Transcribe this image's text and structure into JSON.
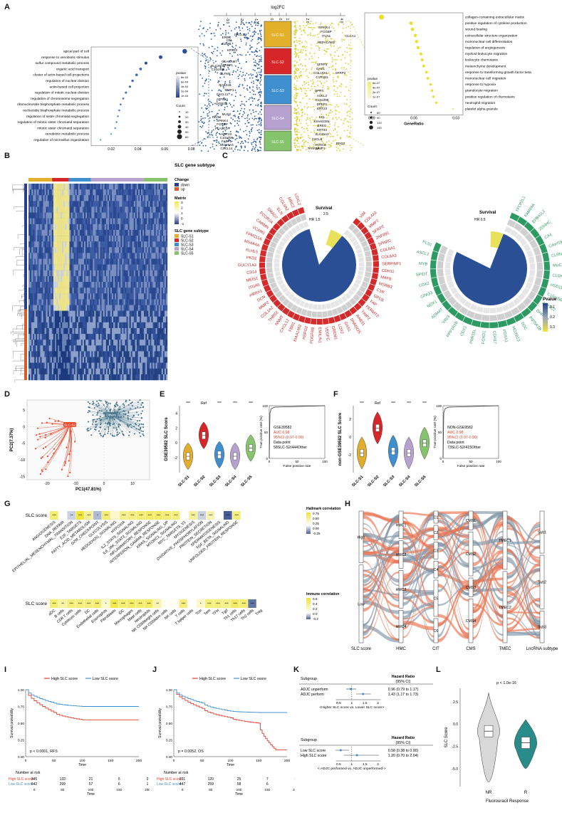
{
  "labels": {
    "A": "A",
    "B": "B",
    "C": "C",
    "D": "D",
    "E": "E",
    "F": "F",
    "G": "G",
    "H": "H",
    "I": "I",
    "J": "J",
    "K": "K",
    "L": "L"
  },
  "panelA": {
    "top_axis_title": "log2FC",
    "top_ticks": [
      "-3.0",
      "-2.0",
      "-1.0",
      "0.0",
      "0.5",
      "1.0",
      "2.0",
      "4.0"
    ],
    "subtypes": [
      "SLC-S1",
      "SLC-S2",
      "SLC-S3",
      "SLC-S4",
      "SLC-S5"
    ],
    "subtype_colors": [
      "#e3b02b",
      "#d7262a",
      "#3f8fce",
      "#b7a2cf",
      "#86c36d"
    ],
    "left_genes": [
      "EREG",
      "CXCL5",
      "CEL",
      "GZMB",
      "KRT23",
      "CEACAM7",
      "SLC26A3",
      "FABP1",
      "C10orf99",
      "OLFM4",
      "RAB31B",
      "MMP1",
      "CXCL11",
      "ATP8A1",
      "ADGRG6",
      "REG4",
      "MUC2",
      "SPINK4",
      "FCGBP",
      "PLA2G2A",
      "KRT23",
      "C10orf99",
      "FABP1",
      "SLC26A3",
      "CXCL14"
    ],
    "right_genes": [
      "SPINK4",
      "FCGBP",
      "ITLN1",
      "CLCA1",
      "HEPACAM2",
      "SFRP4",
      "GAS1",
      "COL10A1",
      "SFRP2",
      "CYP1B1",
      "QPRT",
      "ASCL2",
      "C10orf99",
      "DPEP1",
      "KRT23",
      "CEL",
      "KIAA0226L",
      "EREG",
      "KRT23",
      "SLC26A3",
      "CXCL5",
      "REG4",
      "HOXC6",
      "MMP1",
      "TFAP2A"
    ],
    "left_terms": [
      "apical part of cell",
      "response to xenobiotic stimulus",
      "sulfur compound metabolic process",
      "organic acid transport",
      "cluster of actin-based cell projections",
      "regulation of nuclear division",
      "actin-based cell projection",
      "regulation of mitotic nuclear division",
      "regulation of chromosome segregation",
      "ribonucleoside bisphosphate metabolic process",
      "nucleoside bisphosphate metabolic process",
      "regulation of sister chromatid segregation",
      "regulation of mitotic sister chromatid separation",
      "mitotic sister chromatid separation",
      "xenobiotic metabolic process",
      "regulation of microvillus organization"
    ],
    "left_ratio": [
      0.075,
      0.057,
      0.046,
      0.042,
      0.039,
      0.036,
      0.034,
      0.031,
      0.029,
      0.027,
      0.026,
      0.025,
      0.024,
      0.023,
      0.02,
      0.012
    ],
    "left_axis_ticks": [
      "0.02",
      "0.04",
      "0.06",
      "0.08"
    ],
    "left_xlabel": "GeneRatio",
    "left_legend_pvalue_title": "pvalue",
    "left_legend_pvalue_ticks": [
      "8e-04",
      "6e-04",
      "4e-04",
      "2e-04",
      "1e-04"
    ],
    "left_legend_count_title": "Count",
    "left_legend_count_ticks": [
      "10",
      "20",
      "30",
      "40",
      "50",
      "60"
    ],
    "right_terms": [
      "collagen-containing extracellular matrix",
      "positive regulation of cytokine production",
      "wound healing",
      "extracellular structure organization",
      "mononuclear cell differentiation",
      "regulation of angiogenesis",
      "myeloid leukocyte migration",
      "leukocyte chemotaxis",
      "mesenchyme development",
      "response to transforming growth factor beta",
      "mononuclear cell migration",
      "response to hypoxia",
      "granulocyte migration",
      "positive regulation of chemotaxis",
      "neutrophil migration",
      "platelet alpha granule"
    ],
    "right_ratio": [
      0.083,
      0.062,
      0.061,
      0.059,
      0.058,
      0.057,
      0.055,
      0.054,
      0.053,
      0.051,
      0.05,
      0.048,
      0.047,
      0.046,
      0.044,
      0.032
    ],
    "right_axis_ticks": [
      "0.09",
      "0.06",
      "0.03"
    ],
    "right_xlabel": "GeneRatio",
    "right_legend_pvalue_title": "pvalue",
    "right_legend_pvalue_ticks": [
      "6e-07",
      "4e-07",
      "2e-07",
      "1e-07"
    ],
    "right_legend_count_title": "Count",
    "right_legend_count_ticks": [
      "60",
      "90",
      "120",
      "150"
    ]
  },
  "panelB": {
    "header": "SLC gene subtype",
    "legend_change_title": "Change",
    "legend_change_items": [
      "down",
      "up"
    ],
    "legend_matrix_title": "Matrix",
    "legend_matrix_ticks": [
      "3",
      "2",
      "1",
      "0",
      "-1"
    ],
    "legend_subtype_title": "SLC gene subtype",
    "legend_subtype_items": [
      "SLC-S1",
      "SLC-S2",
      "SLC-S3",
      "SLC-S4",
      "SLC-S5"
    ]
  },
  "panelC": {
    "left_genes": [
      "VIM",
      "COL4A1",
      "MMP7",
      "SFRP2",
      "ZNF891",
      "SPARC",
      "COL8A1",
      "COL6A3",
      "SERPINF1",
      "CDH11",
      "MAFB",
      "MSRB3",
      "C1R",
      "GPC6",
      "FAP",
      "FERMT2",
      "TIMP2",
      "RAB31",
      "DNM3OS",
      "GAS1",
      "LOX2",
      "GREM1",
      "VEGFC",
      "EMILIN1",
      "PDGFRB",
      "HSPG2",
      "KIAA1462",
      "FBN1",
      "CXCL12",
      "NNMT",
      "THBS2",
      "COL1A2",
      "MMP2",
      "DCN",
      "PRRX1",
      "ITGA5",
      "MEIS1",
      "CD14",
      "GUCY1A3",
      "PKD2",
      "KLHL5",
      "MS4A4A",
      "FAM111A",
      "VCAM1",
      "CARMN",
      "FCGR2A",
      "SMAD7",
      "ELN",
      "COL5A2",
      "MRC2",
      "LOXL2"
    ],
    "right_genes": [
      "TFCP2L1",
      "FAM84A",
      "EPB41L2",
      "ZDHHC",
      "CA4",
      "C4orf19",
      "CLRN3",
      "MUC13",
      "CLDN3",
      "HSD11B2",
      "C10orf99",
      "ATP2C2",
      "DHRS11",
      "PIPI5K1B",
      "DDC",
      "HOXB13",
      "FOXA1",
      "CDH17",
      "FOXD1",
      "PRR15L",
      "CDX1",
      "PPP1R1B",
      "VAV3",
      "AGMAT",
      "NOX1",
      "GPA33",
      "CDX2",
      "SPIDT",
      "MYB",
      "ASCL2",
      "PLS1"
    ],
    "survival_label": "Survival",
    "hr_label_left": "HR 1.5",
    "hr_label_left_top": "2.5",
    "hr_label_left_mid": "1.5",
    "hr_label_right": "HR 0.5",
    "legend_title": "Pvalue",
    "legend_ticks": [
      "0.1",
      "0.2",
      "0.3"
    ]
  },
  "panelD": {
    "xlabel": "PC1(47.81%)",
    "ylabel": "PC2(7.37%)",
    "group_slc": "SLC-S2",
    "group_others": "Others",
    "x_ticks": [
      "-20",
      "-10",
      "0",
      "10"
    ],
    "y_ticks": [
      "5",
      "0",
      "-5",
      "-10",
      "-15"
    ]
  },
  "panelE": {
    "ylabel": "GSE39582 SLC Score",
    "sig": [
      "***",
      "Ref",
      "***",
      "***",
      "***"
    ],
    "groups": [
      "SLC-S1",
      "SLC-S2",
      "SLC-S3",
      "SLC-S4",
      "SLC-S5"
    ],
    "y_ticks": [
      "4",
      "2",
      "0",
      "-2"
    ],
    "roc_ylabel": "True positive rate (%)",
    "roc_xlabel": "False positive rate",
    "roc_dataset": "GSE39582",
    "roc_auc": "AUC 0.98",
    "roc_ci": "95%CI (0.97-0.99)",
    "roc_point": "Data point",
    "roc_points": "58SLC-S2/444Other",
    "roc_ticks": [
      "100",
      "50",
      "0"
    ],
    "roc_xticks": [
      "0",
      "50",
      "100"
    ]
  },
  "panelF": {
    "ylabel": "non-GSE39582 SLC Score",
    "sig": [
      "***",
      "Ref",
      "***",
      "***",
      "***"
    ],
    "groups": [
      "SLC-S1",
      "SLC-S2",
      "SLC-S3",
      "SLC-S4",
      "SLC-S5"
    ],
    "y_ticks": [
      "2",
      "0",
      "-2"
    ],
    "roc_ylabel": "True positive rate (%)",
    "roc_xlabel": "False positive rate",
    "roc_dataset": "NON-GSE9582",
    "roc_auc": "AUC 0.98",
    "roc_ci": "95%CI (0.97-0.99)",
    "roc_point": "Data point",
    "roc_points": "73SLC-S2/415Other",
    "roc_ticks": [
      "100",
      "50",
      "0"
    ],
    "roc_xticks": [
      "0",
      "50",
      "100"
    ]
  },
  "panelG": {
    "row_label": "SLC score",
    "hallmark": [
      "ANGIOGENESIS",
      "DNA_REPAIR",
      "EPITHELIAL_MESENCHYMAL_TRANSITION",
      "E2F_TARGETS",
      "FATTY_ACID_METABOLISM",
      "G2M_CHECKPOINT",
      "GLYCOLYSIS",
      "HEDGEHOG_SIGNALING",
      "HYPOXIA",
      "IL2_STAT5_SIGNALING",
      "IL6_JAK_STAT3_SIGNALING",
      "INFLAMMATORY_RESPONSE",
      "INTERFERON_GAMMA_RESPONSE",
      "KRAS_SIGNALING_UP",
      "MTORC1_SIGNALING",
      "MYC_TARGETS_V1",
      "MYOGENESIS",
      "OXIDATIVE_PHOSPHORYLATION",
      "PROTEIN_SECRETION",
      "SPERMATOGENESIS",
      "TGF_BETA_SIGNALING",
      "UNFOLDED_PROTEIN_RESPONSE"
    ],
    "hallmark_sig": [
      "***",
      "",
      "**",
      "***",
      "***",
      "*",
      "***",
      "",
      "***",
      "***",
      "***",
      "***",
      "***",
      "***",
      "***",
      "",
      "***",
      "***",
      "***",
      "",
      "***",
      "***"
    ],
    "hallmark_val": [
      0.55,
      0.0,
      -0.1,
      0.75,
      0.4,
      -0.15,
      0.55,
      0.2,
      0.45,
      0.5,
      0.55,
      0.6,
      0.6,
      0.55,
      0.5,
      0.0,
      0.4,
      -0.1,
      0.3,
      0.0,
      -0.35,
      0.5
    ],
    "hallmark_legend_title": "Hallmark correlation",
    "hallmark_legend_ticks": [
      "0.75",
      "0.50",
      "0.25",
      "0.00",
      "-0.25"
    ],
    "immune": [
      "aDC",
      "B cells",
      "CD8 T cells",
      "Cytotoxic cells",
      "DC",
      "Endothelial cells",
      "Eosinophils",
      "Fibroblasts",
      "iDC",
      "Macrophages",
      "Mast cells",
      "Neutrophils",
      "NK CD56bright cells",
      "NK CD56dim cells",
      "NK cells",
      "T cells",
      "T helper cells",
      "Tcm",
      "Tem",
      "TFH",
      "Tgd",
      "Th1 cells",
      "Th17 cells",
      "Th2 cells",
      "Treg"
    ],
    "immune_sig": [
      "***",
      "**",
      "***",
      "***",
      "***",
      "***",
      "*",
      "***",
      "***",
      "***",
      "***",
      "***",
      "**",
      "",
      "",
      "***",
      "",
      "*",
      "***",
      "***",
      "***",
      "***",
      "***",
      "***",
      ""
    ],
    "immune_val": [
      0.55,
      0.35,
      0.5,
      0.5,
      0.5,
      0.55,
      0.2,
      0.7,
      0.55,
      0.6,
      0.55,
      0.6,
      0.3,
      0.05,
      0.05,
      0.5,
      0.0,
      0.2,
      0.5,
      0.5,
      0.45,
      0.6,
      0.55,
      -0.3,
      0.0
    ],
    "immune_legend_title": "Immune correlation",
    "immune_legend_ticks": [
      "0.6",
      "0.4",
      "0.2",
      "0.0",
      "-0.2"
    ]
  },
  "panelH": {
    "axes": [
      "SLC score",
      "HMC",
      "CIT",
      "CMS",
      "TMEC",
      "LncRNA subtype"
    ],
    "slc_nodes": [
      "High",
      "Low"
    ],
    "hmc_nodes": [
      "HMC1",
      "HMC2",
      "HMC3",
      "HMC4"
    ],
    "cit_nodes": [
      "C1",
      "C2",
      "C3",
      "C4",
      "C5",
      "C6"
    ],
    "cms_nodes": [
      "CMS1",
      "CMS2",
      "CMS3",
      "CMS4"
    ],
    "tmec_nodes": [
      "TMEC1",
      "TMEC2"
    ],
    "lnc_nodes": [
      "Sub1",
      "Sub2",
      "Sub3"
    ]
  },
  "panelI": {
    "legend_high": "High SLC score",
    "legend_low": "Low SLC score",
    "ylabel": "Survival probability",
    "xlabel": "Time",
    "pvalue": "p < 0.0001, RFS",
    "risk_title": "Number at risk",
    "risk_high": [
      "345",
      "133",
      "21",
      "5",
      "0"
    ],
    "risk_low": [
      "642",
      "299",
      "57",
      "6",
      "1"
    ],
    "time_ticks": [
      "0",
      "50",
      "100",
      "150",
      "200"
    ],
    "y_ticks": [
      "1.00",
      "0.75",
      "0.50",
      "0.25",
      "0.00"
    ],
    "chart_data": {
      "type": "line",
      "x": [
        0,
        50,
        100,
        150,
        200
      ],
      "series": [
        {
          "name": "High SLC score",
          "values": [
            1.0,
            0.66,
            0.55,
            0.55,
            0.55
          ]
        },
        {
          "name": "Low SLC score",
          "values": [
            1.0,
            0.8,
            0.75,
            0.75,
            0.75
          ]
        }
      ]
    }
  },
  "panelJ": {
    "legend_high": "High SLC score",
    "legend_low": "Low SLC score",
    "ylabel": "Survival probability",
    "xlabel": "Time",
    "pvalue": "p = 0.0052, OS",
    "risk_title": "Number at risk",
    "risk_high": [
      "231",
      "120",
      "25",
      "7",
      "0"
    ],
    "risk_low": [
      "447",
      "259",
      "58",
      "6",
      "1"
    ],
    "time_ticks": [
      "0",
      "50",
      "100",
      "150",
      "200"
    ],
    "y_ticks": [
      "1.00",
      "0.75",
      "0.50",
      "0.25",
      "0.00"
    ],
    "chart_data": {
      "type": "line",
      "x": [
        0,
        50,
        100,
        150,
        180,
        200
      ],
      "series": [
        {
          "name": "High SLC score",
          "values": [
            1.0,
            0.72,
            0.58,
            0.5,
            0.1,
            0.1
          ]
        },
        {
          "name": "Low SLC score",
          "values": [
            1.0,
            0.8,
            0.68,
            0.66,
            0.66,
            0.66
          ]
        }
      ]
    }
  },
  "panelK": {
    "subgroup": "Subgroup",
    "hr_title": "Hazard Ratio",
    "ci_title": "(95% CI)",
    "rows1": [
      {
        "label": "ADJC unperform",
        "hr": "0.96 (0.79 to 1.17)",
        "est": 0.96,
        "lo": 0.79,
        "hi": 1.17
      },
      {
        "label": "ADJC perform",
        "hr": "1.43 (1.17 to 1.73)",
        "est": 1.43,
        "lo": 1.17,
        "hi": 1.73
      }
    ],
    "axis1_caption": "<Higher SLC score vs. Lower SLC score>",
    "rows2": [
      {
        "label": "Low SLC score",
        "hr": "0.58 (0.38 to 0.90)",
        "est": 0.58,
        "lo": 0.38,
        "hi": 0.9
      },
      {
        "label": "High SLC score",
        "hr": "1.20 (0.70 to 2.04)",
        "est": 1.2,
        "lo": 0.7,
        "hi": 2.04
      }
    ],
    "axis2_caption": "<-ADJC performed vs. ADJC unperformed->",
    "axis_ticks1": [
      "0.5",
      "1",
      "1.5",
      "2"
    ],
    "axis_ticks2": [
      "0.5",
      "1",
      "1.5",
      "2"
    ]
  },
  "panelL": {
    "pvalue": "p < 1.0e-16",
    "ylabel": "SLC Score",
    "xlabel": "Fluorouracil Response",
    "groups": [
      "NR",
      "R"
    ],
    "y_ticks": [
      "2.5",
      "0.0",
      "-2.5",
      "-5.0"
    ]
  }
}
